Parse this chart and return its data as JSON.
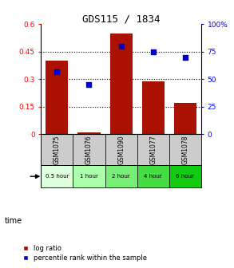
{
  "title": "GDS115 / 1834",
  "gsm_labels": [
    "GSM1075",
    "GSM1076",
    "GSM1090",
    "GSM1077",
    "GSM1078"
  ],
  "time_labels": [
    "0.5 hour",
    "1 hour",
    "2 hour",
    "4 hour",
    "6 hour"
  ],
  "log_ratios": [
    0.4,
    0.012,
    0.55,
    0.29,
    0.17
  ],
  "percentile_ranks": [
    57,
    45,
    80,
    75,
    70
  ],
  "bar_color": "#aa1100",
  "marker_color": "#0000cc",
  "ylim_left": [
    0,
    0.6
  ],
  "ylim_right": [
    0,
    100
  ],
  "yticks_left": [
    0,
    0.15,
    0.3,
    0.45,
    0.6
  ],
  "ytick_labels_left": [
    "0",
    "0.15",
    "0.3",
    "0.45",
    "0.6"
  ],
  "yticks_right": [
    0,
    25,
    50,
    75,
    100
  ],
  "ytick_labels_right": [
    "0",
    "25",
    "50",
    "75",
    "100%"
  ],
  "hlines": [
    0.15,
    0.3,
    0.45
  ],
  "time_bg_colors": [
    "#ddffdd",
    "#aaffaa",
    "#77ee77",
    "#44dd44",
    "#11cc11"
  ],
  "gsm_bg_color": "#cccccc",
  "legend_labels": [
    "log ratio",
    "percentile rank within the sample"
  ]
}
